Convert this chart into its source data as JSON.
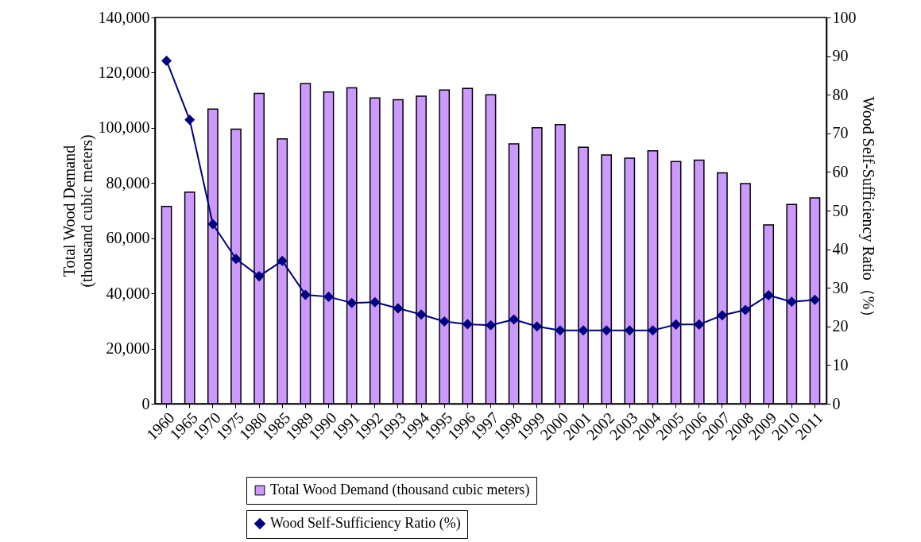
{
  "chart_data": {
    "type": "bar",
    "categories": [
      "1960",
      "1965",
      "1970",
      "1975",
      "1980",
      "1985",
      "1989",
      "1990",
      "1991",
      "1992",
      "1993",
      "1994",
      "1995",
      "1996",
      "1997",
      "1998",
      "1999",
      "2000",
      "2001",
      "2002",
      "2003",
      "2004",
      "2005",
      "2006",
      "2007",
      "2008",
      "2009",
      "2010",
      "2011"
    ],
    "series": [
      {
        "name": "Total Wood Demand (thousand cubic meters)",
        "color": "#cc99ff",
        "values": [
          71500,
          76700,
          106800,
          99500,
          112500,
          96000,
          116000,
          113000,
          114500,
          110800,
          110200,
          111500,
          113700,
          114300,
          112000,
          94200,
          100000,
          101200,
          93000,
          90200,
          89000,
          91700,
          87800,
          88300,
          83700,
          79800,
          64800,
          72200,
          74600
        ]
      },
      {
        "name": "Wood Self-Sufficiency Ratio (%)",
        "type": "line",
        "axis": "y2",
        "color": "#000080",
        "values": [
          88.8,
          73.5,
          46.5,
          37.5,
          33,
          37,
          28.2,
          27.7,
          26.1,
          26.3,
          24.7,
          23.1,
          21.3,
          20.6,
          20.3,
          21.8,
          20.0,
          19.0,
          19.0,
          19.0,
          19.0,
          19.0,
          20.5,
          20.5,
          22.9,
          24.3,
          28.1,
          26.4,
          26.9
        ]
      }
    ],
    "ylabel": "Total Wood Demand (thousand cubic meters)",
    "y2label": "Wood Self-Sufficiency Ratio（%）",
    "ylim": [
      0,
      140000
    ],
    "yticks": [
      0,
      {
        "value": 20000,
        "label": "20,000"
      },
      {
        "value": 40000,
        "label": "40,000"
      },
      {
        "value": 60000,
        "label": "60,000"
      },
      {
        "value": 80000,
        "label": "80,000"
      },
      {
        "value": 100000,
        "label": "100,000"
      },
      {
        "value": 120000,
        "label": "120,000"
      },
      {
        "value": 140000,
        "label": "140,000"
      }
    ],
    "y2lim": [
      0,
      100
    ],
    "y2ticks": [
      0,
      10,
      20,
      30,
      40,
      50,
      60,
      70,
      80,
      90,
      100
    ],
    "legend": "bottom",
    "marker": "diamond"
  }
}
